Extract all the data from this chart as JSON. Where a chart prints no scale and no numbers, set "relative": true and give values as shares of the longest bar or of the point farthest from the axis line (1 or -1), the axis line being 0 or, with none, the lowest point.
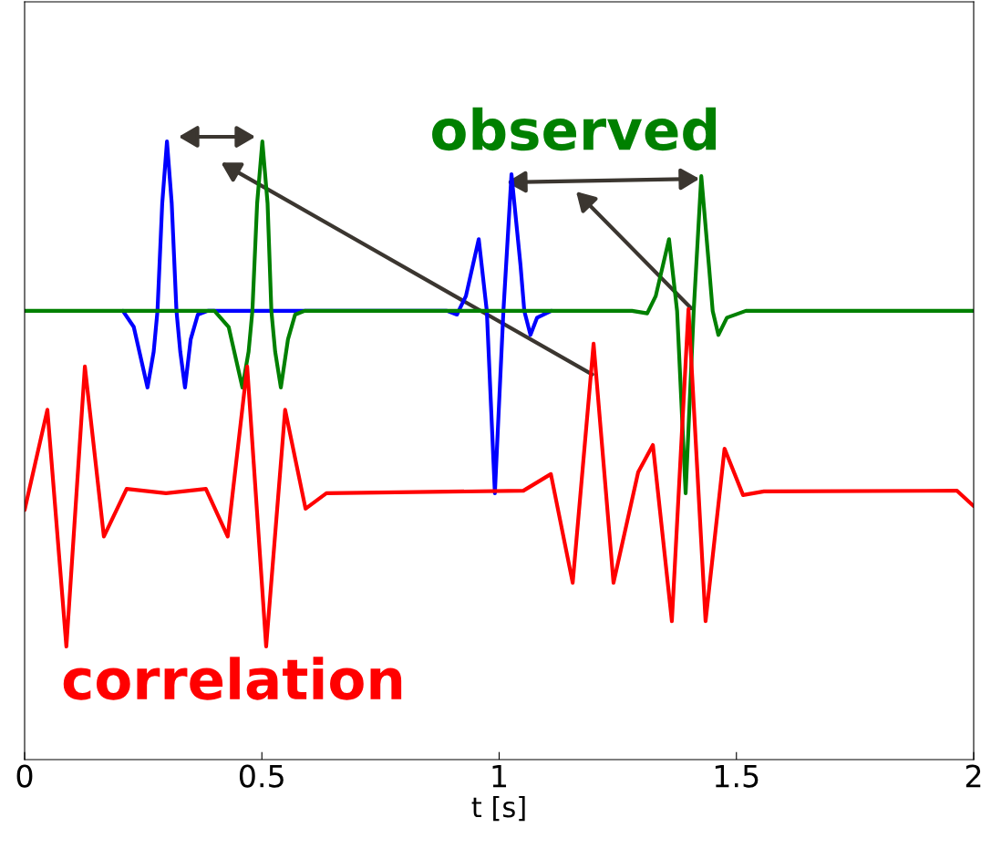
{
  "chart_data": {
    "type": "line",
    "relative": true,
    "xlabel": "t [s]",
    "xlim": [
      0,
      2
    ],
    "xticks": [
      0,
      0.5,
      1,
      1.5,
      2
    ],
    "tick_labels": "x",
    "grid": false,
    "legend": false,
    "series": [
      {
        "color": "#0000ff",
        "x": [
          0.207,
          0.23,
          0.259,
          0.272,
          0.28,
          0.29,
          0.3,
          0.31,
          0.32,
          0.328,
          0.338,
          0.35,
          0.365,
          0.386,
          0.89,
          0.911,
          0.93,
          0.957,
          0.974,
          0.991,
          1.009,
          1.026,
          1.045,
          1.053,
          1.066,
          1.08,
          1.11
        ],
        "values": [
          0.726,
          0.7,
          0.602,
          0.66,
          0.726,
          0.9,
          1.0,
          0.9,
          0.726,
          0.66,
          0.602,
          0.68,
          0.72,
          0.726,
          0.726,
          0.72,
          0.75,
          0.842,
          0.726,
          0.431,
          0.726,
          0.947,
          0.8,
          0.726,
          0.687,
          0.715,
          0.726
        ]
      },
      {
        "name": "observed",
        "color": "#008000",
        "x": [
          0,
          0.4,
          0.43,
          0.459,
          0.472,
          0.48,
          0.49,
          0.501,
          0.512,
          0.52,
          0.528,
          0.54,
          0.555,
          0.57,
          0.59,
          1.28,
          1.312,
          1.33,
          1.358,
          1.375,
          1.393,
          1.41,
          1.426,
          1.442,
          1.45,
          1.462,
          1.48,
          1.52,
          2
        ],
        "values": [
          0.726,
          0.726,
          0.7,
          0.602,
          0.66,
          0.726,
          0.9,
          1.0,
          0.9,
          0.726,
          0.66,
          0.602,
          0.68,
          0.72,
          0.726,
          0.726,
          0.722,
          0.75,
          0.842,
          0.726,
          0.431,
          0.726,
          0.944,
          0.8,
          0.726,
          0.687,
          0.715,
          0.726,
          0.726
        ]
      },
      {
        "name": "correlation",
        "color": "#ff0000",
        "x": [
          0,
          0.048,
          0.088,
          0.127,
          0.167,
          0.215,
          0.298,
          0.382,
          0.428,
          0.469,
          0.509,
          0.549,
          0.592,
          0.636,
          1.051,
          1.109,
          1.155,
          1.199,
          1.241,
          1.293,
          1.324,
          1.364,
          1.399,
          1.435,
          1.475,
          1.514,
          1.558,
          1.965,
          2
        ],
        "values": [
          0.404,
          0.566,
          0.183,
          0.636,
          0.361,
          0.438,
          0.431,
          0.438,
          0.361,
          0.636,
          0.183,
          0.566,
          0.406,
          0.431,
          0.435,
          0.462,
          0.286,
          0.673,
          0.286,
          0.465,
          0.509,
          0.224,
          0.729,
          0.224,
          0.503,
          0.428,
          0.434,
          0.435,
          0.41
        ]
      }
    ]
  }
}
